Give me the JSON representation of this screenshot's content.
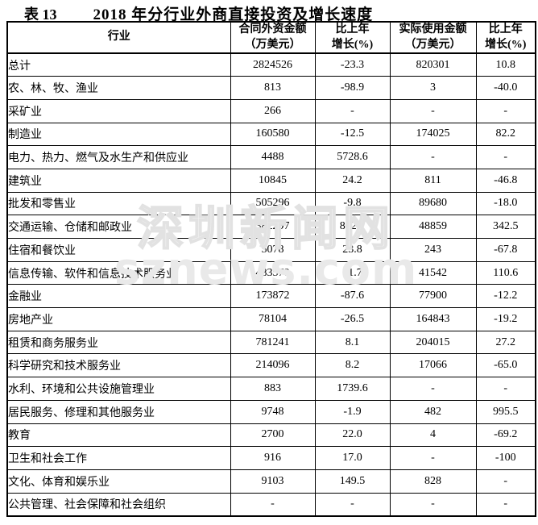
{
  "title": {
    "label": "表 13",
    "text": "2018 年分行业外商直接投资及增长速度"
  },
  "watermark": {
    "line1": "深圳新闻网",
    "line2": "sznews.com"
  },
  "colors": {
    "text": "#000000",
    "border": "#000000",
    "watermark": "#e2e2e2",
    "background": "#ffffff"
  },
  "table": {
    "headers": {
      "industry": "行业",
      "contract_amount_line1": "合同外资金额",
      "contract_amount_line2": "（万美元）",
      "growth_contract_line1": "比上年",
      "growth_contract_line2": "增长(%)",
      "actual_amount_line1": "实际使用金额",
      "actual_amount_line2": "（万美元）",
      "growth_actual_line1": "比上年",
      "growth_actual_line2": "增长(%)"
    },
    "rows": [
      [
        "总计",
        "2824526",
        "-23.3",
        "820301",
        "10.8"
      ],
      [
        "农、林、牧、渔业",
        "813",
        "-98.9",
        "3",
        "-40.0"
      ],
      [
        "采矿业",
        "266",
        "-",
        "-",
        "-"
      ],
      [
        "制造业",
        "160580",
        "-12.5",
        "174025",
        "82.2"
      ],
      [
        "电力、热力、燃气及水生产和供应业",
        "4488",
        "5728.6",
        "-",
        "-"
      ],
      [
        "建筑业",
        "10845",
        "24.2",
        "811",
        "-46.8"
      ],
      [
        "批发和零售业",
        "505296",
        "-9.8",
        "89680",
        "-18.0"
      ],
      [
        "交通运输、仓储和邮政业",
        "382297",
        "802.2",
        "48859",
        "342.5"
      ],
      [
        "住宿和餐饮业",
        "5078",
        "23.8",
        "243",
        "-67.8"
      ],
      [
        "信息传输、软件和信息技术服务业",
        "483570",
        "31.7",
        "41542",
        "110.6"
      ],
      [
        "金融业",
        "173872",
        "-87.6",
        "77900",
        "-12.2"
      ],
      [
        "房地产业",
        "78104",
        "-26.5",
        "164843",
        "-19.2"
      ],
      [
        "租赁和商务服务业",
        "781241",
        "8.1",
        "204015",
        "27.2"
      ],
      [
        "科学研究和技术服务业",
        "214096",
        "8.2",
        "17066",
        "-65.0"
      ],
      [
        "水利、环境和公共设施管理业",
        "883",
        "1739.6",
        "-",
        "-"
      ],
      [
        "居民服务、修理和其他服务业",
        "9748",
        "-1.9",
        "482",
        "995.5"
      ],
      [
        "教育",
        "2700",
        "22.0",
        "4",
        "-69.2"
      ],
      [
        "卫生和社会工作",
        "916",
        "17.0",
        "-",
        "-100"
      ],
      [
        "文化、体育和娱乐业",
        "9103",
        "149.5",
        "828",
        "-"
      ],
      [
        "公共管理、社会保障和社会组织",
        "-",
        "-",
        "-",
        "-"
      ]
    ]
  }
}
